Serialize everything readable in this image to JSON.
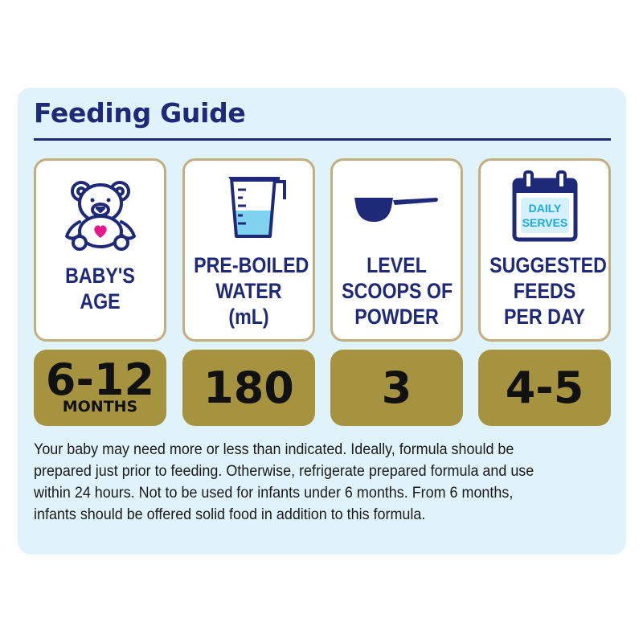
{
  "title": "Feeding Guide",
  "columns": [
    {
      "icon": "teddy-bear-icon",
      "label_lines": [
        "BABY'S",
        "AGE"
      ],
      "value": "6-12",
      "value_unit": "MONTHS"
    },
    {
      "icon": "measuring-jug-icon",
      "label_lines": [
        "PRE-BOILED",
        "WATER",
        "(mL)"
      ],
      "value": "180",
      "value_unit": ""
    },
    {
      "icon": "scoop-icon",
      "label_lines": [
        "LEVEL",
        "SCOOPS OF",
        "POWDER"
      ],
      "value": "3",
      "value_unit": ""
    },
    {
      "icon": "calendar-icon",
      "icon_text": [
        "DAILY",
        "SERVES"
      ],
      "label_lines": [
        "SUGGESTED",
        "FEEDS",
        "PER DAY"
      ],
      "value": "4-5",
      "value_unit": ""
    }
  ],
  "note_lines": [
    "Your baby may need more or less than indicated. Ideally, formula should be",
    "prepared just prior to feeding. Otherwise, refrigerate prepared formula and use",
    "within 24 hours. Not to be used for infants under 6 months. From 6 months,",
    "infants should be offered solid food in addition to this formula."
  ],
  "colors": {
    "navy": "#1e2a78",
    "panel_bg": "#e0f3fa",
    "gold": "#a69340",
    "card_border": "#c2ae7e",
    "heart": "#e6178a",
    "water": "#7fd3ee"
  }
}
